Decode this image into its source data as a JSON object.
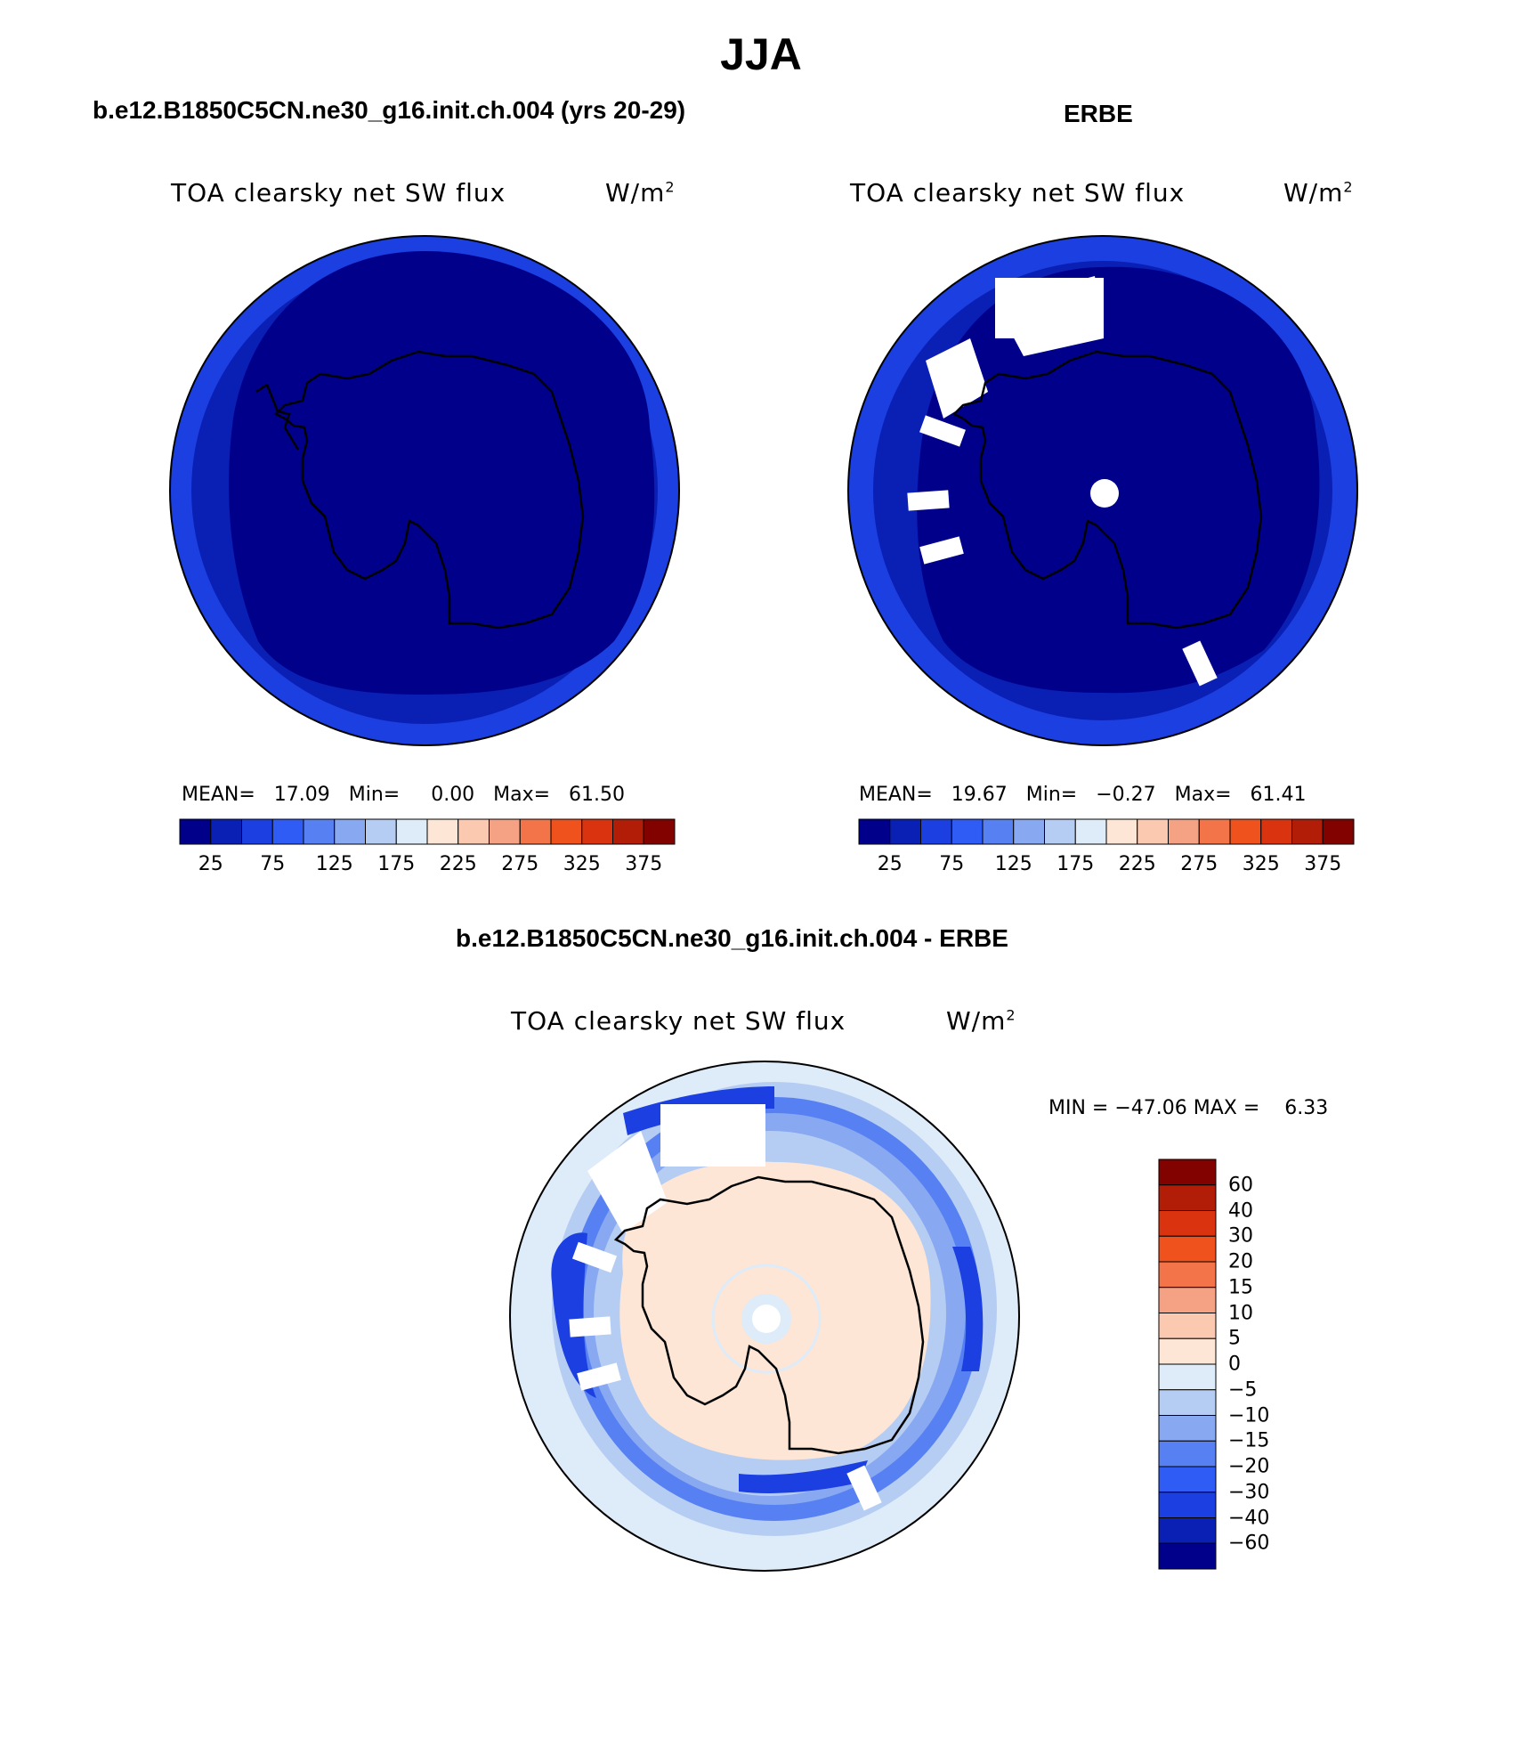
{
  "title": "JJA",
  "panels": [
    {
      "id": "model",
      "heading": "b.e12.B1850C5CN.ne30_g16.init.ch.004 (yrs 20-29)",
      "variable": "TOA clearsky net SW flux",
      "units": "W/m",
      "units_exp": "2",
      "stats": "MEAN=   17.09   Min=     0.00   Max=   61.50"
    },
    {
      "id": "obs",
      "heading": "ERBE",
      "variable": "TOA clearsky net SW flux",
      "units": "W/m",
      "units_exp": "2",
      "stats": "MEAN=   19.67   Min=   −0.27   Max=   61.41"
    }
  ],
  "difference": {
    "heading": "b.e12.B1850C5CN.ne30_g16.init.ch.004 - ERBE",
    "variable": "TOA clearsky net SW flux",
    "units": "W/m",
    "units_exp": "2",
    "minmax": "MIN = −47.06 MAX =    6.33"
  },
  "colorbar_abs": {
    "colors": [
      "#00008b",
      "#0a1fb4",
      "#1b3fe0",
      "#2f5cf5",
      "#5781f2",
      "#88a9f1",
      "#b6cdf3",
      "#deebf9",
      "#fde6d6",
      "#fbc8b0",
      "#f5a284",
      "#f37449",
      "#f0521e",
      "#da3310",
      "#b11d07",
      "#820200"
    ],
    "labels": [
      "25",
      "75",
      "125",
      "175",
      "225",
      "275",
      "325",
      "375"
    ]
  },
  "colorbar_diff": {
    "colors": [
      "#00008b",
      "#0a1fb4",
      "#1b3fe0",
      "#2f5cf5",
      "#5781f2",
      "#88a9f1",
      "#b6cdf3",
      "#deebf9",
      "#fde6d6",
      "#fbc8b0",
      "#f5a284",
      "#f37449",
      "#f0521e",
      "#da3310",
      "#b11d07",
      "#820200"
    ],
    "labels": [
      "60",
      "40",
      "30",
      "20",
      "15",
      "10",
      "5",
      "0",
      "−5",
      "−10",
      "−15",
      "−20",
      "−30",
      "−40",
      "−60"
    ]
  }
}
